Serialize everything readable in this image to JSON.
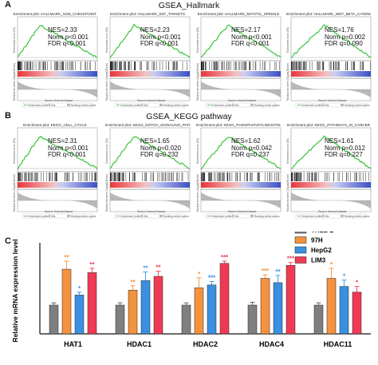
{
  "panel_a": {
    "letter": "A",
    "title": "GSEA_Hallmark",
    "plots": [
      {
        "title": "Enrichment plot: HALLMARK_G2M_CHECKPOINT",
        "nes": "NES=2.33",
        "norm_p": "Norm p<0.001",
        "fdr": "FDR q<0.001"
      },
      {
        "title": "Enrichment plot: HALLMARK_E2F_TARGETS",
        "nes": "NES=2.23",
        "norm_p": "Norm p<0.001",
        "fdr": "FDR q<0.001"
      },
      {
        "title": "Enrichment plot: HALLMARK_MITOTIC_SPINDLE",
        "nes": "NES=2.17",
        "norm_p": "Norm p<0.001",
        "fdr": "FDR q<0.001"
      },
      {
        "title": "Enrichment plot: HALLMARK_WNT_BETA_CATENIN_SIGNALING",
        "nes": "NES=1.76",
        "norm_p": "Norm p=0.002",
        "fdr": "FDR q=0.090"
      }
    ]
  },
  "panel_b": {
    "letter": "B",
    "title": "GSEA_KEGG pathway",
    "plots": [
      {
        "title": "Enrichment plot: KEGG_CELL_CYCLE",
        "nes": "NES=2.31",
        "norm_p": "Norm p<0.001",
        "fdr": "FDR q<0.001"
      },
      {
        "title": "Enrichment plot: KEGG_NOTCH_SIGNALING_PATHWAY",
        "nes": "NES=1.65",
        "norm_p": "Norm p=0.020",
        "fdr": "FDR q=0.232"
      },
      {
        "title": "Enrichment plot: KEGG_PHOSPHATIDYLINOSITOL_SIGNALING_SYSTEM",
        "nes": "NES=1.62",
        "norm_p": "Norm p=0.042",
        "fdr": "FDR q=0.237"
      },
      {
        "title": "Enrichment plot: KEGG_PATHWAYS_IN_CANCER",
        "nes": "NES=1.61",
        "norm_p": "Norm p=0.012",
        "fdr": "FDR q=0.227"
      }
    ]
  },
  "gsea_small_text": {
    "ylabel_es": "Enrichment score (ES)",
    "ylabel_rank": "Ranked list metric (Signal2Noise)",
    "xlabel": "Rank in Ordered Dataset",
    "legend_es": "Enrichment profile",
    "legend_hits": "Hits",
    "legend_rank": "Ranking metric scores"
  },
  "panel_c": {
    "letter": "C"
  },
  "colors": {
    "gsea_curve": "#2bbf2b",
    "gsea_red": "#e8353a",
    "gsea_blue": "#3a4fc4",
    "THLE-2": "#7f7f7f",
    "97H": "#f5923e",
    "HepG2": "#3a8fe0",
    "LIM3": "#f03a55"
  },
  "chart_data": {
    "type": "bar",
    "ylabel": "Relative mRNA expression level",
    "ylim": [
      0,
      3
    ],
    "categories": [
      "HAT1",
      "HDAC1",
      "HDAC2",
      "HDAC4",
      "HDAC11"
    ],
    "series": [
      {
        "name": "THLE-2",
        "values": [
          1.0,
          1.0,
          1.0,
          1.0,
          1.0
        ],
        "errors": [
          0.08,
          0.08,
          0.08,
          0.1,
          0.08
        ],
        "sig": [
          "",
          "",
          "",
          "",
          ""
        ]
      },
      {
        "name": "97H",
        "values": [
          2.25,
          1.52,
          1.6,
          1.93,
          1.93
        ],
        "errors": [
          0.28,
          0.15,
          0.35,
          0.12,
          0.35
        ],
        "sig": [
          "**",
          "**",
          "*",
          "***",
          "*"
        ]
      },
      {
        "name": "HepG2",
        "values": [
          1.35,
          1.85,
          1.7,
          1.78,
          1.65
        ],
        "errors": [
          0.1,
          0.3,
          0.12,
          0.25,
          0.22
        ],
        "sig": [
          "*",
          "**",
          "***",
          "**",
          "*"
        ]
      },
      {
        "name": "LIM3",
        "values": [
          2.13,
          2.0,
          2.45,
          2.38,
          1.45
        ],
        "errors": [
          0.15,
          0.18,
          0.08,
          0.1,
          0.2
        ],
        "sig": [
          "**",
          "**",
          "***",
          "***",
          "*"
        ]
      }
    ]
  }
}
